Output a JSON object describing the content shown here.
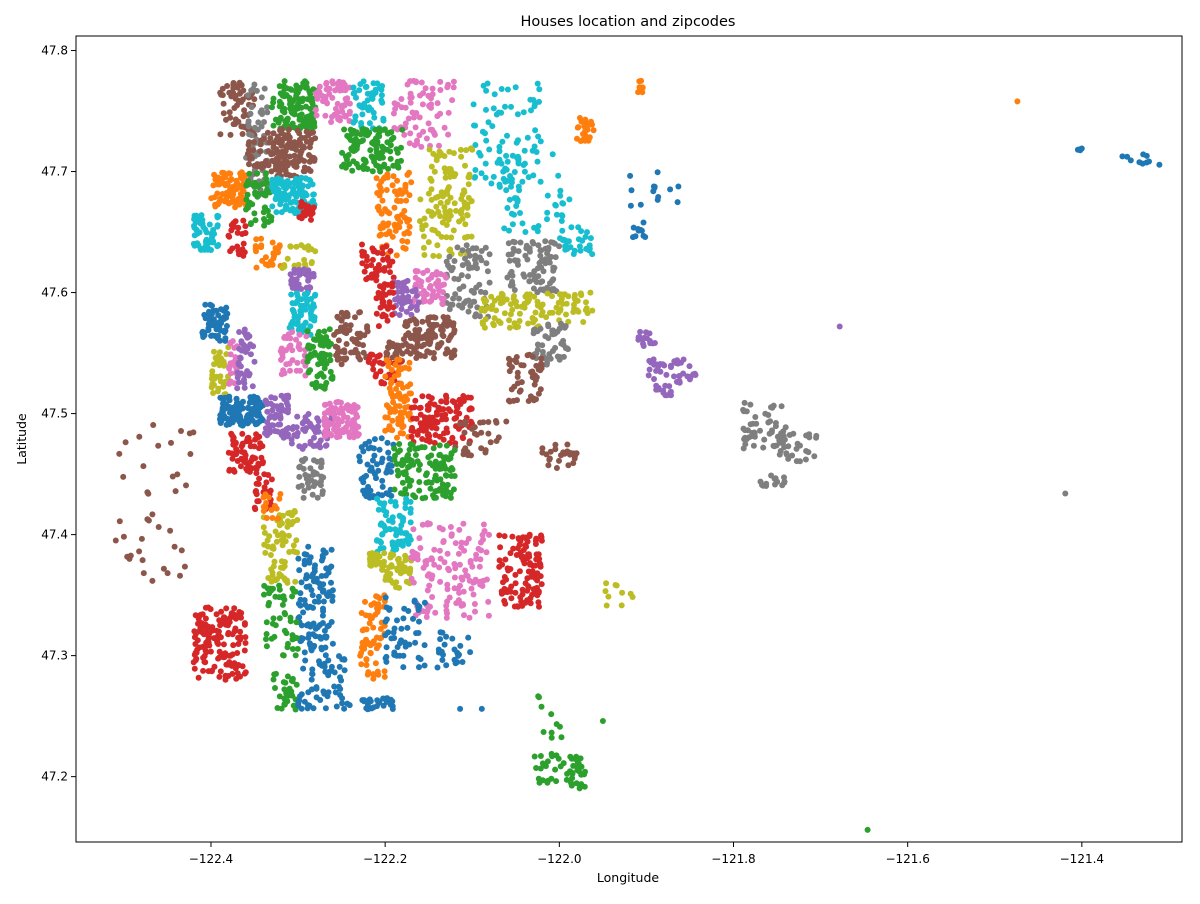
{
  "chart_data": {
    "type": "scatter",
    "title": "Houses location and zipcodes",
    "xlabel": "Longitude",
    "ylabel": "Latitude",
    "xlim": [
      -122.555,
      -121.285
    ],
    "ylim": [
      47.146,
      47.812
    ],
    "xticks": [
      -122.4,
      -122.2,
      -122.0,
      -121.8,
      -121.6,
      -121.4
    ],
    "xtick_labels": [
      "−122.4",
      "−122.2",
      "−122.0",
      "−121.8",
      "−121.6",
      "−121.4"
    ],
    "yticks": [
      47.2,
      47.3,
      47.4,
      47.5,
      47.6,
      47.7,
      47.8
    ],
    "ytick_labels": [
      "47.2",
      "47.3",
      "47.4",
      "47.5",
      "47.6",
      "47.7",
      "47.8"
    ],
    "grid": false,
    "legend": "none",
    "palette": [
      "#1f77b4",
      "#ff7f0e",
      "#2ca02c",
      "#d62728",
      "#9467bd",
      "#8c564b",
      "#e377c2",
      "#7f7f7f",
      "#bcbd22",
      "#17becf"
    ],
    "clusters": [
      {
        "color": "#8c564b",
        "lon": [
          -122.39,
          -122.35
        ],
        "lat": [
          47.73,
          47.775
        ],
        "n": 60
      },
      {
        "color": "#7f7f7f",
        "lon": [
          -122.36,
          -122.335
        ],
        "lat": [
          47.68,
          47.775
        ],
        "n": 60
      },
      {
        "color": "#2ca02c",
        "lon": [
          -122.33,
          -122.28
        ],
        "lat": [
          47.735,
          47.775
        ],
        "n": 120
      },
      {
        "color": "#e377c2",
        "lon": [
          -122.28,
          -122.24
        ],
        "lat": [
          47.74,
          47.775
        ],
        "n": 60
      },
      {
        "color": "#17becf",
        "lon": [
          -122.24,
          -122.2
        ],
        "lat": [
          47.735,
          47.775
        ],
        "n": 50
      },
      {
        "color": "#e377c2",
        "lon": [
          -122.19,
          -122.12
        ],
        "lat": [
          47.72,
          47.775
        ],
        "n": 70
      },
      {
        "color": "#17becf",
        "lon": [
          -122.1,
          -122.02
        ],
        "lat": [
          47.69,
          47.775
        ],
        "n": 70
      },
      {
        "color": "#ff7f0e",
        "lon": [
          -121.98,
          -121.96
        ],
        "lat": [
          47.725,
          47.745
        ],
        "n": 25
      },
      {
        "color": "#ff7f0e",
        "lon": [
          -121.91,
          -121.9
        ],
        "lat": [
          47.765,
          47.775
        ],
        "n": 8
      },
      {
        "color": "#8c564b",
        "lon": [
          -122.36,
          -122.3
        ],
        "lat": [
          47.695,
          47.735
        ],
        "n": 70
      },
      {
        "color": "#8c564b",
        "lon": [
          -122.33,
          -122.28
        ],
        "lat": [
          47.7,
          47.735
        ],
        "n": 90
      },
      {
        "color": "#2ca02c",
        "lon": [
          -122.25,
          -122.18
        ],
        "lat": [
          47.7,
          47.735
        ],
        "n": 110
      },
      {
        "color": "#bcbd22",
        "lon": [
          -122.15,
          -122.1
        ],
        "lat": [
          47.66,
          47.72
        ],
        "n": 70
      },
      {
        "color": "#17becf",
        "lon": [
          -122.07,
          -121.98
        ],
        "lat": [
          47.65,
          47.715
        ],
        "n": 60
      },
      {
        "color": "#ff7f0e",
        "lon": [
          -122.4,
          -122.36
        ],
        "lat": [
          47.67,
          47.7
        ],
        "n": 90
      },
      {
        "color": "#2ca02c",
        "lon": [
          -122.36,
          -122.33
        ],
        "lat": [
          47.655,
          47.7
        ],
        "n": 50
      },
      {
        "color": "#17becf",
        "lon": [
          -122.33,
          -122.28
        ],
        "lat": [
          47.665,
          47.695
        ],
        "n": 110
      },
      {
        "color": "#ff7f0e",
        "lon": [
          -122.21,
          -122.17
        ],
        "lat": [
          47.63,
          47.7
        ],
        "n": 80
      },
      {
        "color": "#bcbd22",
        "lon": [
          -122.16,
          -122.1
        ],
        "lat": [
          47.63,
          47.68
        ],
        "n": 50
      },
      {
        "color": "#17becf",
        "lon": [
          -122.42,
          -122.39
        ],
        "lat": [
          47.635,
          47.665
        ],
        "n": 60
      },
      {
        "color": "#d62728",
        "lon": [
          -122.38,
          -122.36
        ],
        "lat": [
          47.63,
          47.66
        ],
        "n": 25
      },
      {
        "color": "#d62728",
        "lon": [
          -122.3,
          -122.28
        ],
        "lat": [
          47.66,
          47.675
        ],
        "n": 20
      },
      {
        "color": "#7f7f7f",
        "lon": [
          -122.06,
          -122.0
        ],
        "lat": [
          47.6,
          47.645
        ],
        "n": 90
      },
      {
        "color": "#17becf",
        "lon": [
          -122.0,
          -121.96
        ],
        "lat": [
          47.63,
          47.655
        ],
        "n": 30
      },
      {
        "color": "#1f77b4",
        "lon": [
          -121.92,
          -121.9
        ],
        "lat": [
          47.645,
          47.66
        ],
        "n": 10
      },
      {
        "color": "#1f77b4",
        "lon": [
          -121.92,
          -121.86
        ],
        "lat": [
          47.67,
          47.7
        ],
        "n": 14
      },
      {
        "color": "#ff7f0e",
        "lon": [
          -122.35,
          -122.32
        ],
        "lat": [
          47.62,
          47.645
        ],
        "n": 25
      },
      {
        "color": "#bcbd22",
        "lon": [
          -122.32,
          -122.28
        ],
        "lat": [
          47.62,
          47.64
        ],
        "n": 20
      },
      {
        "color": "#d62728",
        "lon": [
          -122.23,
          -122.19
        ],
        "lat": [
          47.61,
          47.64
        ],
        "n": 40
      },
      {
        "color": "#7f7f7f",
        "lon": [
          -122.13,
          -122.08
        ],
        "lat": [
          47.58,
          47.64
        ],
        "n": 70
      },
      {
        "color": "#e377c2",
        "lon": [
          -122.17,
          -122.13
        ],
        "lat": [
          47.59,
          47.62
        ],
        "n": 50
      },
      {
        "color": "#9467bd",
        "lon": [
          -122.19,
          -122.16
        ],
        "lat": [
          47.58,
          47.61
        ],
        "n": 40
      },
      {
        "color": "#d62728",
        "lon": [
          -122.21,
          -122.19
        ],
        "lat": [
          47.57,
          47.61
        ],
        "n": 30
      },
      {
        "color": "#9467bd",
        "lon": [
          -122.31,
          -122.28
        ],
        "lat": [
          47.6,
          47.62
        ],
        "n": 35
      },
      {
        "color": "#17becf",
        "lon": [
          -122.31,
          -122.28
        ],
        "lat": [
          47.565,
          47.6
        ],
        "n": 60
      },
      {
        "color": "#bcbd22",
        "lon": [
          -122.09,
          -122.02
        ],
        "lat": [
          47.57,
          47.6
        ],
        "n": 70
      },
      {
        "color": "#bcbd22",
        "lon": [
          -122.02,
          -121.96
        ],
        "lat": [
          47.575,
          47.6
        ],
        "n": 40
      },
      {
        "color": "#7f7f7f",
        "lon": [
          -122.03,
          -121.99
        ],
        "lat": [
          47.54,
          47.575
        ],
        "n": 50
      },
      {
        "color": "#1f77b4",
        "lon": [
          -122.41,
          -122.38
        ],
        "lat": [
          47.56,
          47.59
        ],
        "n": 60
      },
      {
        "color": "#8c564b",
        "lon": [
          -122.26,
          -122.22
        ],
        "lat": [
          47.54,
          47.585
        ],
        "n": 60
      },
      {
        "color": "#8c564b",
        "lon": [
          -122.18,
          -122.12
        ],
        "lat": [
          47.545,
          47.58
        ],
        "n": 110
      },
      {
        "color": "#8c564b",
        "lon": [
          -122.2,
          -122.18
        ],
        "lat": [
          47.54,
          47.56
        ],
        "n": 25
      },
      {
        "color": "#9467bd",
        "lon": [
          -121.91,
          -121.89
        ],
        "lat": [
          47.555,
          47.57
        ],
        "n": 15
      },
      {
        "color": "#9467bd",
        "lon": [
          -121.9,
          -121.84
        ],
        "lat": [
          47.525,
          47.545
        ],
        "n": 40
      },
      {
        "color": "#9467bd",
        "lon": [
          -121.89,
          -121.87
        ],
        "lat": [
          47.515,
          47.525
        ],
        "n": 15
      },
      {
        "color": "#bcbd22",
        "lon": [
          -122.4,
          -122.38
        ],
        "lat": [
          47.515,
          47.555
        ],
        "n": 40
      },
      {
        "color": "#e377c2",
        "lon": [
          -122.38,
          -122.37
        ],
        "lat": [
          47.52,
          47.56
        ],
        "n": 20
      },
      {
        "color": "#9467bd",
        "lon": [
          -122.37,
          -122.35
        ],
        "lat": [
          47.52,
          47.57
        ],
        "n": 40
      },
      {
        "color": "#e377c2",
        "lon": [
          -122.32,
          -122.29
        ],
        "lat": [
          47.53,
          47.57
        ],
        "n": 40
      },
      {
        "color": "#2ca02c",
        "lon": [
          -122.29,
          -122.26
        ],
        "lat": [
          47.52,
          47.57
        ],
        "n": 70
      },
      {
        "color": "#d62728",
        "lon": [
          -122.22,
          -122.18
        ],
        "lat": [
          47.52,
          47.55
        ],
        "n": 30
      },
      {
        "color": "#8c564b",
        "lon": [
          -122.06,
          -122.02
        ],
        "lat": [
          47.51,
          47.55
        ],
        "n": 50
      },
      {
        "color": "#1f77b4",
        "lon": [
          -122.39,
          -122.34
        ],
        "lat": [
          47.49,
          47.515
        ],
        "n": 120
      },
      {
        "color": "#9467bd",
        "lon": [
          -122.34,
          -122.31
        ],
        "lat": [
          47.48,
          47.515
        ],
        "n": 60
      },
      {
        "color": "#9467bd",
        "lon": [
          -122.31,
          -122.26
        ],
        "lat": [
          47.47,
          47.5
        ],
        "n": 50
      },
      {
        "color": "#e377c2",
        "lon": [
          -122.27,
          -122.23
        ],
        "lat": [
          47.48,
          47.51
        ],
        "n": 100
      },
      {
        "color": "#ff7f0e",
        "lon": [
          -122.2,
          -122.17
        ],
        "lat": [
          47.48,
          47.545
        ],
        "n": 80
      },
      {
        "color": "#d62728",
        "lon": [
          -122.17,
          -122.1
        ],
        "lat": [
          47.475,
          47.515
        ],
        "n": 110
      },
      {
        "color": "#8c564b",
        "lon": [
          -122.12,
          -122.06
        ],
        "lat": [
          47.465,
          47.495
        ],
        "n": 30
      },
      {
        "color": "#8c564b",
        "lon": [
          -122.02,
          -121.98
        ],
        "lat": [
          47.455,
          47.475
        ],
        "n": 25
      },
      {
        "color": "#7f7f7f",
        "lon": [
          -121.79,
          -121.74
        ],
        "lat": [
          47.47,
          47.51
        ],
        "n": 50
      },
      {
        "color": "#7f7f7f",
        "lon": [
          -121.75,
          -121.7
        ],
        "lat": [
          47.46,
          47.485
        ],
        "n": 30
      },
      {
        "color": "#7f7f7f",
        "lon": [
          -121.77,
          -121.74
        ],
        "lat": [
          47.44,
          47.45
        ],
        "n": 15
      },
      {
        "color": "#d62728",
        "lon": [
          -122.38,
          -122.34
        ],
        "lat": [
          47.45,
          47.485
        ],
        "n": 70
      },
      {
        "color": "#d62728",
        "lon": [
          -122.35,
          -122.33
        ],
        "lat": [
          47.42,
          47.45
        ],
        "n": 25
      },
      {
        "color": "#7f7f7f",
        "lon": [
          -122.3,
          -122.27
        ],
        "lat": [
          47.43,
          47.465
        ],
        "n": 40
      },
      {
        "color": "#1f77b4",
        "lon": [
          -122.23,
          -122.19
        ],
        "lat": [
          47.43,
          47.48
        ],
        "n": 60
      },
      {
        "color": "#2ca02c",
        "lon": [
          -122.19,
          -122.12
        ],
        "lat": [
          47.43,
          47.475
        ],
        "n": 120
      },
      {
        "color": "#8c564b",
        "lon": [
          -122.51,
          -122.42
        ],
        "lat": [
          47.35,
          47.5
        ],
        "n": 40
      },
      {
        "color": "#bcbd22",
        "lon": [
          -122.34,
          -122.3
        ],
        "lat": [
          47.36,
          47.42
        ],
        "n": 70
      },
      {
        "color": "#ff7f0e",
        "lon": [
          -122.34,
          -122.32
        ],
        "lat": [
          47.41,
          47.435
        ],
        "n": 15
      },
      {
        "color": "#17becf",
        "lon": [
          -122.21,
          -122.17
        ],
        "lat": [
          47.385,
          47.43
        ],
        "n": 70
      },
      {
        "color": "#bcbd22",
        "lon": [
          -122.22,
          -122.2
        ],
        "lat": [
          47.37,
          47.385
        ],
        "n": 30
      },
      {
        "color": "#bcbd22",
        "lon": [
          -122.2,
          -122.17
        ],
        "lat": [
          47.355,
          47.385
        ],
        "n": 40
      },
      {
        "color": "#e377c2",
        "lon": [
          -122.17,
          -122.08
        ],
        "lat": [
          47.33,
          47.41
        ],
        "n": 130
      },
      {
        "color": "#d62728",
        "lon": [
          -122.07,
          -122.02
        ],
        "lat": [
          47.34,
          47.4
        ],
        "n": 110
      },
      {
        "color": "#1f77b4",
        "lon": [
          -122.3,
          -122.26
        ],
        "lat": [
          47.3,
          47.39
        ],
        "n": 110
      },
      {
        "color": "#bcbd22",
        "lon": [
          -121.95,
          -121.91
        ],
        "lat": [
          47.34,
          47.36
        ],
        "n": 10
      },
      {
        "color": "#d62728",
        "lon": [
          -122.42,
          -122.36
        ],
        "lat": [
          47.28,
          47.34
        ],
        "n": 150
      },
      {
        "color": "#2ca02c",
        "lon": [
          -122.34,
          -122.3
        ],
        "lat": [
          47.3,
          47.36
        ],
        "n": 50
      },
      {
        "color": "#ff7f0e",
        "lon": [
          -122.23,
          -122.2
        ],
        "lat": [
          47.28,
          47.35
        ],
        "n": 60
      },
      {
        "color": "#1f77b4",
        "lon": [
          -122.2,
          -122.15
        ],
        "lat": [
          47.29,
          47.35
        ],
        "n": 50
      },
      {
        "color": "#1f77b4",
        "lon": [
          -122.14,
          -122.1
        ],
        "lat": [
          47.29,
          47.32
        ],
        "n": 25
      },
      {
        "color": "#2ca02c",
        "lon": [
          -122.33,
          -122.3
        ],
        "lat": [
          47.255,
          47.285
        ],
        "n": 30
      },
      {
        "color": "#1f77b4",
        "lon": [
          -122.3,
          -122.24
        ],
        "lat": [
          47.255,
          47.3
        ],
        "n": 60
      },
      {
        "color": "#1f77b4",
        "lon": [
          -122.23,
          -122.19
        ],
        "lat": [
          47.255,
          47.265
        ],
        "n": 30
      },
      {
        "color": "#2ca02c",
        "lon": [
          -122.03,
          -121.97
        ],
        "lat": [
          47.19,
          47.22
        ],
        "n": 50
      },
      {
        "color": "#2ca02c",
        "lon": [
          -122.03,
          -121.99
        ],
        "lat": [
          47.23,
          47.27
        ],
        "n": 10
      },
      {
        "color": "#1f77b4",
        "lon": [
          -121.41,
          -121.4
        ],
        "lat": [
          47.717,
          47.72
        ],
        "n": 4
      },
      {
        "color": "#1f77b4",
        "lon": [
          -121.36,
          -121.31
        ],
        "lat": [
          47.705,
          47.715
        ],
        "n": 10
      }
    ],
    "outliers": [
      {
        "color": "#ff7f0e",
        "lon": -121.474,
        "lat": 47.758
      },
      {
        "color": "#2ca02c",
        "lon": -121.646,
        "lat": 47.156
      },
      {
        "color": "#7f7f7f",
        "lon": -121.419,
        "lat": 47.434
      },
      {
        "color": "#9467bd",
        "lon": -121.678,
        "lat": 47.572
      },
      {
        "color": "#2ca02c",
        "lon": -121.95,
        "lat": 47.246
      },
      {
        "color": "#1f77b4",
        "lon": -122.089,
        "lat": 47.256
      },
      {
        "color": "#1f77b4",
        "lon": -122.114,
        "lat": 47.256
      }
    ]
  }
}
